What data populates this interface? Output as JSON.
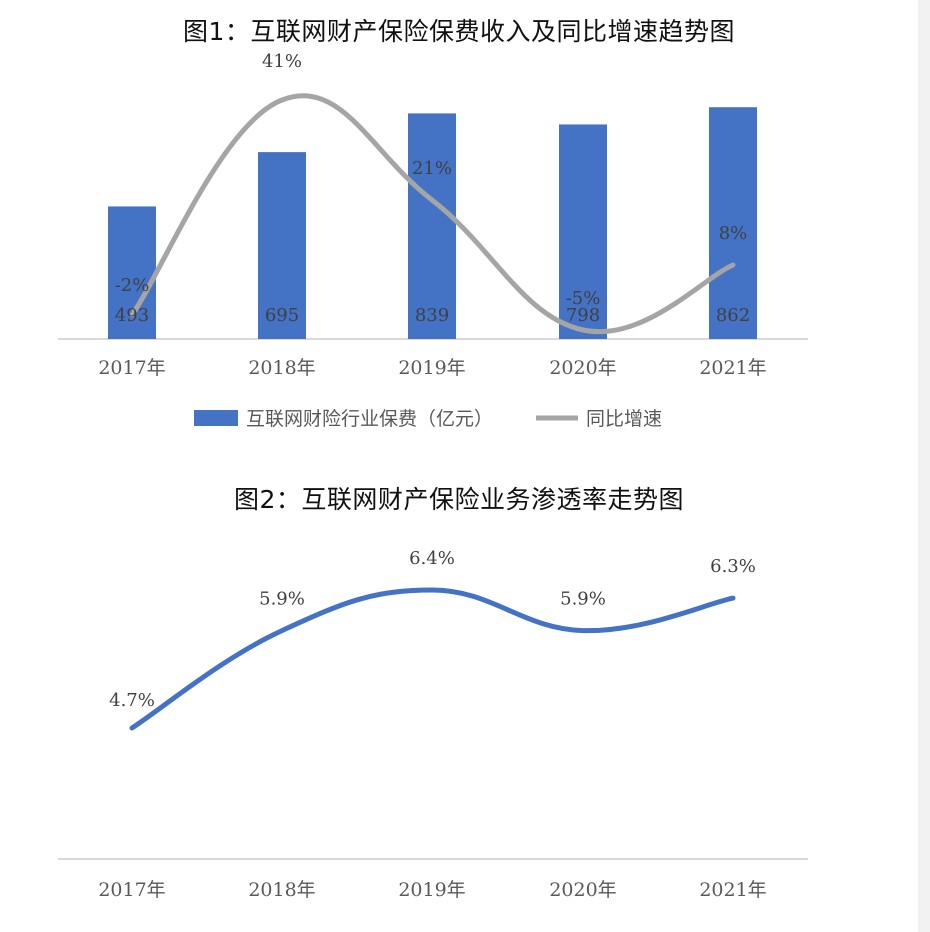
{
  "chart_data": [
    {
      "type": "bar",
      "title": "图1：互联网财产保险保费收入及同比增速趋势图",
      "categories": [
        "2017年",
        "2018年",
        "2019年",
        "2020年",
        "2021年"
      ],
      "series": [
        {
          "name": "互联网财险行业保费（亿元）",
          "type": "bar",
          "values": [
            493,
            695,
            839,
            798,
            862
          ],
          "labels": [
            "493",
            "695",
            "839",
            "798",
            "862"
          ],
          "color": "#4472c4"
        },
        {
          "name": "同比增速",
          "type": "line",
          "values": [
            -2,
            41,
            21,
            -5,
            8
          ],
          "labels": [
            "-2%",
            "41%",
            "21%",
            "-5%",
            "8%"
          ],
          "color": "#a5a5a5"
        }
      ],
      "ylim_bar": [
        0,
        900
      ],
      "ylim_line": [
        -10,
        45
      ],
      "legend": "bottom",
      "grid": false
    },
    {
      "type": "line",
      "title": "图2：互联网财产保险业务渗透率走势图",
      "categories": [
        "2017年",
        "2018年",
        "2019年",
        "2020年",
        "2021年"
      ],
      "series": [
        {
          "values": [
            4.7,
            5.9,
            6.4,
            5.9,
            6.3
          ],
          "labels": [
            "4.7%",
            "5.9%",
            "6.4%",
            "5.9%",
            "6.3%"
          ],
          "color": "#4472c4"
        }
      ],
      "legend": "none",
      "grid": false
    }
  ]
}
